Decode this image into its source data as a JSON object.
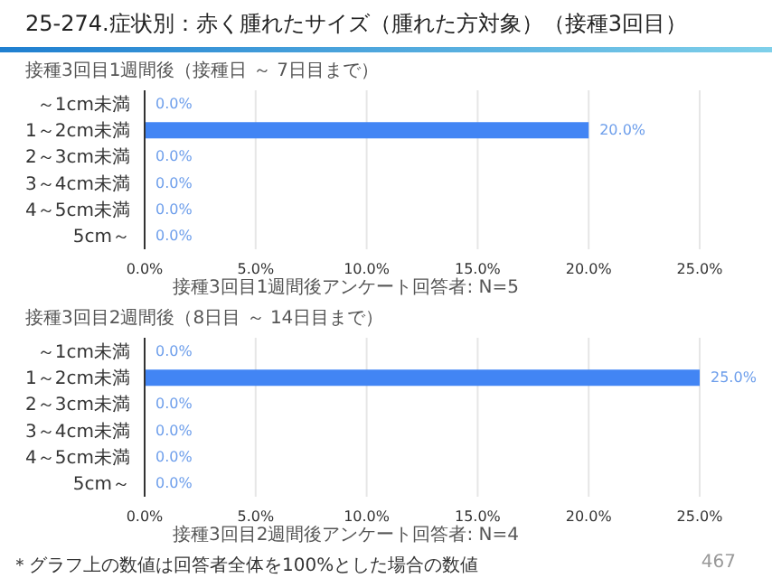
{
  "chart_data": [
    {
      "type": "bar",
      "orientation": "horizontal",
      "title": "25-274.症状別：赤く腫れたサイズ（腫れた方対象）（接種3回目）",
      "subtitle": "接種3回目1週間後（接種日 ～ 7日目まで）",
      "categories": [
        "～1cm未満",
        "1～2cm未満",
        "2～3cm未満",
        "3～4cm未満",
        "4～5cm未満",
        "5cm～"
      ],
      "values": [
        0,
        20,
        0,
        0,
        0,
        0
      ],
      "color": "#4285f4",
      "value_labels": [
        "0.0%",
        "20.0%",
        "0.0%",
        "0.0%",
        "0.0%",
        "0.0%"
      ],
      "xlim": [
        0,
        25
      ],
      "xticks": [
        {
          "value": 0,
          "label": "0.0%"
        },
        {
          "value": 5,
          "label": "5.0%"
        },
        {
          "value": 10,
          "label": "10.0%"
        },
        {
          "value": 15,
          "label": "15.0%"
        },
        {
          "value": 20,
          "label": "20.0%"
        },
        {
          "value": 25,
          "label": "25.0%"
        }
      ],
      "grid": "x",
      "annotations": [
        "接種3回目1週間後アンケート回答者: N=5"
      ]
    },
    {
      "type": "bar",
      "orientation": "horizontal",
      "subtitle": "接種3回目2週間後（8日目 ～ 14日目まで）",
      "categories": [
        "～1cm未満",
        "1～2cm未満",
        "2～3cm未満",
        "3～4cm未満",
        "4～5cm未満",
        "5cm～"
      ],
      "values": [
        0,
        25,
        0,
        0,
        0,
        0
      ],
      "color": "#4285f4",
      "value_labels": [
        "0.0%",
        "25.0%",
        "0.0%",
        "0.0%",
        "0.0%",
        "0.0%"
      ],
      "xlim": [
        0,
        25
      ],
      "xticks": [
        {
          "value": 0,
          "label": "0.0%"
        },
        {
          "value": 5,
          "label": "5.0%"
        },
        {
          "value": 10,
          "label": "10.0%"
        },
        {
          "value": 15,
          "label": "15.0%"
        },
        {
          "value": 20,
          "label": "20.0%"
        },
        {
          "value": 25,
          "label": "25.0%"
        }
      ],
      "grid": "x",
      "annotations": [
        "接種3回目2週間後アンケート回答者: N=4",
        "＊グラフ上の数値は回答者全体を100%とした場合の数値",
        "467"
      ]
    }
  ]
}
